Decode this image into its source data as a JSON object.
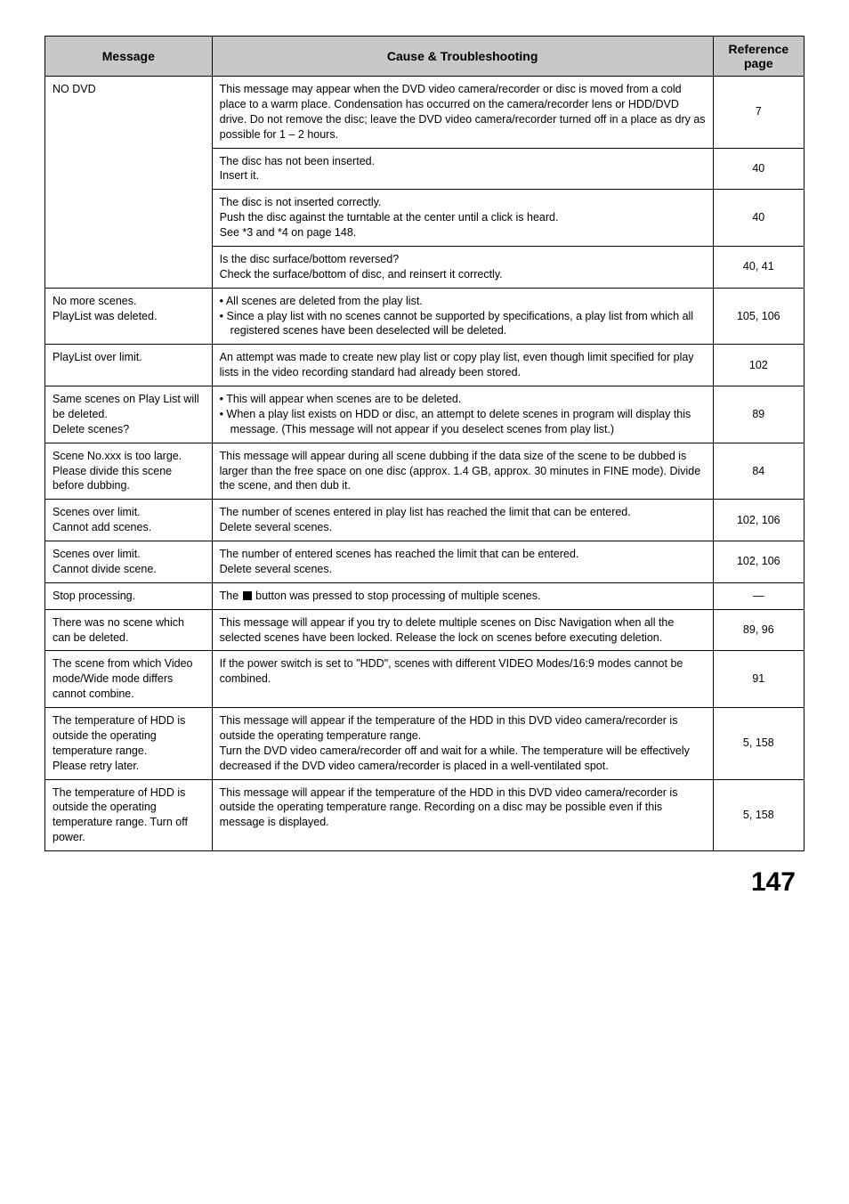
{
  "headers": {
    "message": "Message",
    "cause": "Cause & Troubleshooting",
    "reference": "Reference page"
  },
  "rows": {
    "nodvd": {
      "msg": "NO DVD",
      "c1": "This message may appear when the DVD video camera/recorder or disc is moved from a cold place to a warm place. Condensation has occurred on the camera/recorder lens or HDD/DVD drive. Do not remove the disc; leave the DVD video camera/recorder turned off in a place as dry as possible for 1 – 2 hours.",
      "r1": "7",
      "c2": "The disc has not been inserted.\nInsert it.",
      "r2": "40",
      "c3": "The disc is not inserted correctly.\nPush the disc against the turntable at the center until a click is heard.\nSee *3 and *4 on page 148.",
      "r3": "40",
      "c4": "Is the disc surface/bottom reversed?\nCheck the surface/bottom of disc, and reinsert it correctly.",
      "r4": "40, 41"
    },
    "nomore": {
      "msg": "No more scenes.\nPlayList was deleted.",
      "b1": "All scenes are deleted from the play list.",
      "b2": "Since a play list with no scenes cannot be supported by specifications, a play list from which all registered scenes have been deselected will be deleted.",
      "ref": "105, 106"
    },
    "playover": {
      "msg": "PlayList over limit.",
      "cause": "An attempt was made to create new play list or copy play list, even though limit specified for play lists in the video recording standard had already been stored.",
      "ref": "102"
    },
    "same": {
      "msg": "Same scenes on Play List will be deleted.\nDelete scenes?",
      "b1": "This will appear when scenes are to be deleted.",
      "b2": "When a play list exists on HDD or disc, an attempt to delete scenes in program will display this message. (This message will not appear if you deselect scenes from play list.)",
      "ref": "89"
    },
    "sceneno": {
      "msg": "Scene No.xxx is too large. Please divide this scene before dubbing.",
      "cause": "This message will appear during all scene dubbing if the data size of the scene to be dubbed is larger than the free space on one disc (approx. 1.4 GB, approx. 30 minutes in FINE mode). Divide the scene, and then dub it.",
      "ref": "84"
    },
    "scenesover": {
      "msg": "Scenes over limit.\nCannot add scenes.",
      "cause": "The number of scenes entered in play list has reached the limit that can be entered.\nDelete several scenes.",
      "ref": "102, 106"
    },
    "scenesdiv": {
      "msg": "Scenes over limit.\nCannot divide scene.",
      "cause": "The number of entered scenes has reached the limit that can be entered.\nDelete several scenes.",
      "ref": "102, 106"
    },
    "stop": {
      "msg": "Stop processing.",
      "pre": "The ",
      "post": " button was pressed to stop processing of multiple scenes.",
      "ref": "—"
    },
    "noscene": {
      "msg": "There was no scene which can be deleted.",
      "cause": "This message will appear if you try to delete multiple scenes on Disc Navigation when all the selected scenes have been locked. Release the lock on scenes before executing deletion.",
      "ref": "89, 96"
    },
    "scenefrom": {
      "msg": "The scene from which Video mode/Wide mode differs cannot combine.",
      "cause": "If the power switch is set to \"HDD\", scenes with different VIDEO Modes/16:9 modes cannot be combined.",
      "ref": "91"
    },
    "temp1": {
      "msg": "The temperature of HDD is outside the operating temperature range.\nPlease retry later.",
      "cause": "This message will appear if the temperature of the HDD in this DVD video camera/recorder is outside the operating temperature range.\nTurn the DVD video camera/recorder off and wait for a while. The temperature will be effectively decreased if the DVD video camera/recorder is placed in a well-ventilated spot.",
      "ref": "5, 158"
    },
    "temp2": {
      "msg": "The temperature of HDD is outside the operating temperature range. Turn off power.",
      "cause": "This message will appear if the temperature of the HDD in this DVD video camera/recorder is outside the operating temperature range. Recording on a disc may be possible even if this message is displayed.",
      "ref": "5, 158"
    }
  },
  "page_number": "147"
}
